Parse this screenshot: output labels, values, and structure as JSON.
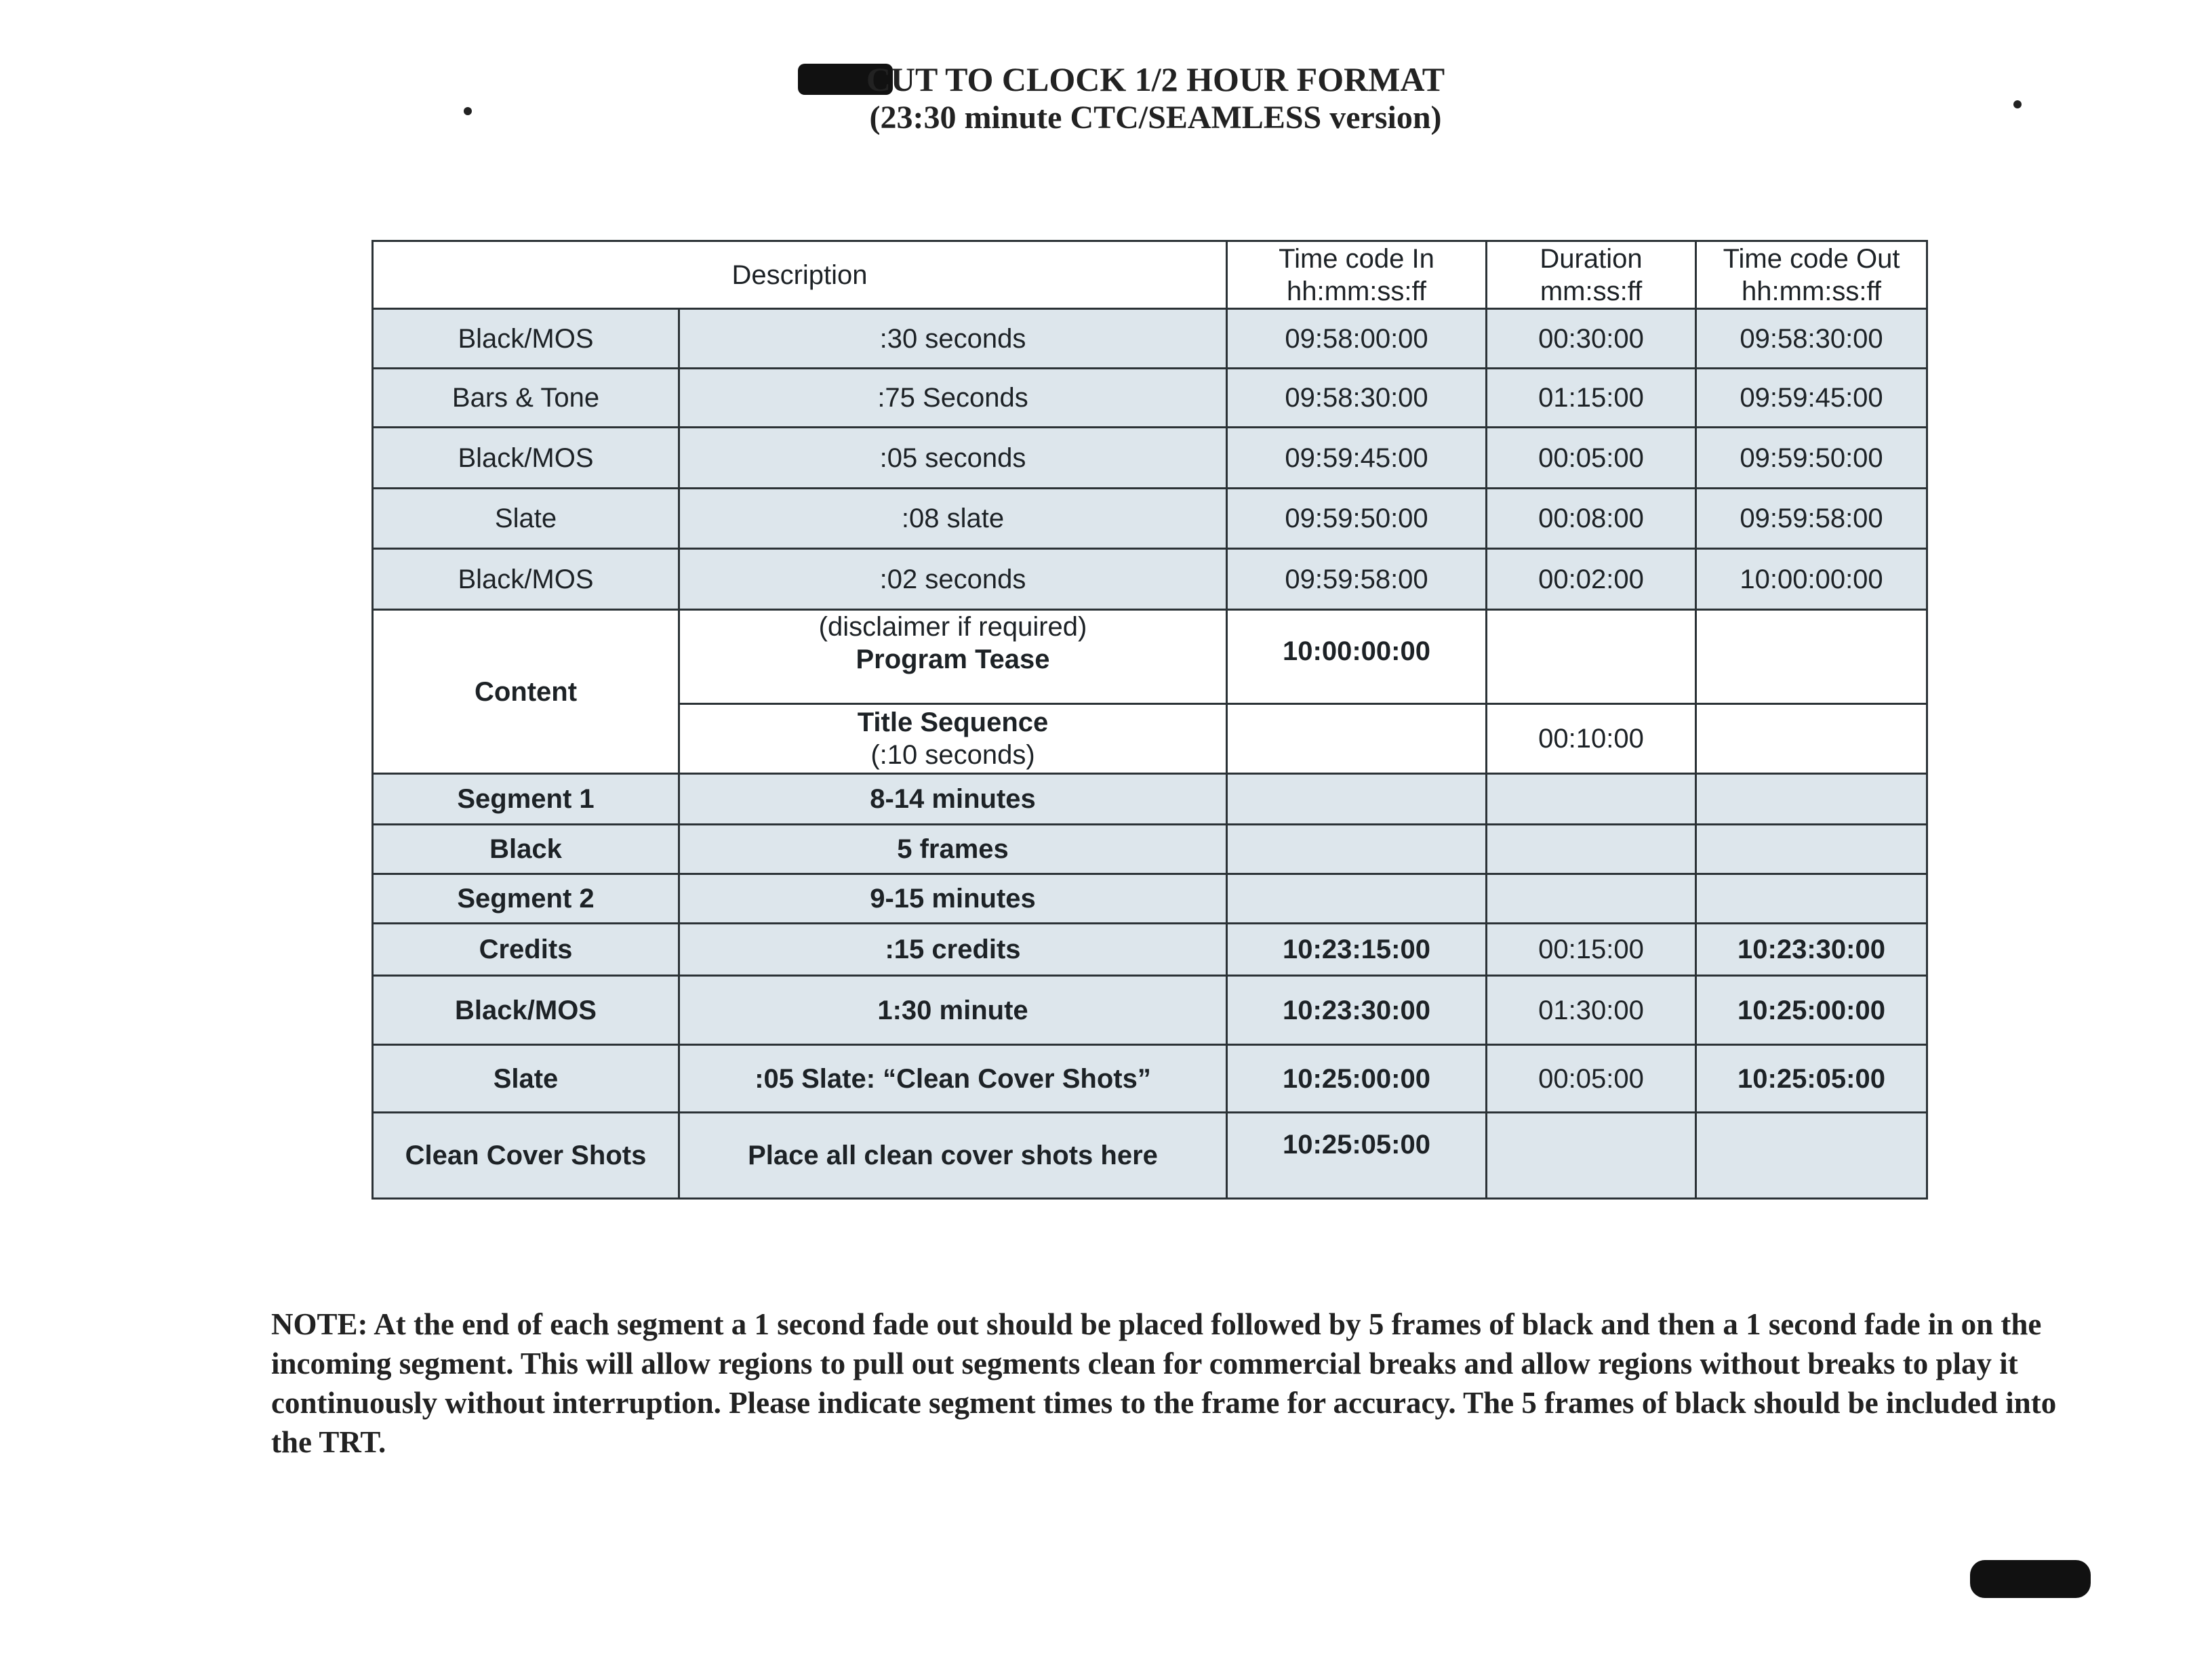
{
  "title": {
    "line1": "CUT TO CLOCK 1/2 HOUR FORMAT",
    "line2": "(23:30 minute CTC/SEAMLESS version)"
  },
  "table": {
    "headers": {
      "description": "Description",
      "tc_in": "Time code In",
      "tc_in_fmt": "hh:mm:ss:ff",
      "duration": "Duration",
      "duration_fmt": "mm:ss:ff",
      "tc_out": "Time code Out",
      "tc_out_fmt": "hh:mm:ss:ff"
    },
    "rows": [
      {
        "item": "Black/MOS",
        "detail": ":30 seconds",
        "tc_in": "09:58:00:00",
        "duration": "00:30:00",
        "tc_out": "09:58:30:00"
      },
      {
        "item": "Bars & Tone",
        "detail": ":75 Seconds",
        "tc_in": "09:58:30:00",
        "duration": "01:15:00",
        "tc_out": "09:59:45:00"
      },
      {
        "item": "Black/MOS",
        "detail": ":05 seconds",
        "tc_in": "09:59:45:00",
        "duration": "00:05:00",
        "tc_out": "09:59:50:00"
      },
      {
        "item": "Slate",
        "detail": ":08 slate",
        "tc_in": "09:59:50:00",
        "duration": "00:08:00",
        "tc_out": "09:59:58:00"
      },
      {
        "item": "Black/MOS",
        "detail": ":02 seconds",
        "tc_in": "09:59:58:00",
        "duration": "00:02:00",
        "tc_out": "10:00:00:00"
      },
      {
        "item": "Content",
        "detail_note": "(disclaimer if required)",
        "detail": "Program Tease",
        "tc_in": "10:00:00:00",
        "duration": "",
        "tc_out": ""
      },
      {
        "detail": "Title Sequence",
        "detail_note": "(:10 seconds)",
        "tc_in": "",
        "duration": "00:10:00",
        "tc_out": ""
      },
      {
        "item": "Segment 1",
        "detail": "8-14 minutes",
        "tc_in": "",
        "duration": "",
        "tc_out": ""
      },
      {
        "item": "Black",
        "detail": "5 frames",
        "tc_in": "",
        "duration": "",
        "tc_out": ""
      },
      {
        "item": "Segment 2",
        "detail": "9-15 minutes",
        "tc_in": "",
        "duration": "",
        "tc_out": ""
      },
      {
        "item": "Credits",
        "detail": ":15 credits",
        "tc_in": "10:23:15:00",
        "duration": "00:15:00",
        "tc_out": "10:23:30:00"
      },
      {
        "item": "Black/MOS",
        "detail": "1:30 minute",
        "tc_in": "10:23:30:00",
        "duration": "01:30:00",
        "tc_out": "10:25:00:00"
      },
      {
        "item": "Slate",
        "detail": ":05 Slate:  “Clean Cover Shots”",
        "tc_in": "10:25:00:00",
        "duration": "00:05:00",
        "tc_out": "10:25:05:00"
      },
      {
        "item": "Clean Cover Shots",
        "detail": "Place all clean cover shots here",
        "tc_in": "10:25:05:00",
        "duration": "",
        "tc_out": ""
      }
    ]
  },
  "note": "NOTE:  At the end of each segment a 1 second fade out should be placed followed by 5 frames of black and then a 1 second fade in on the incoming segment.  This will allow regions to pull out segments clean for commercial breaks and allow regions without breaks to play it continuously without interruption.   Please indicate segment times to the frame for accuracy. The 5 frames of black should be included into the TRT.",
  "colors": {
    "row_shade": "#dde6ec",
    "ink": "#1d2226"
  }
}
